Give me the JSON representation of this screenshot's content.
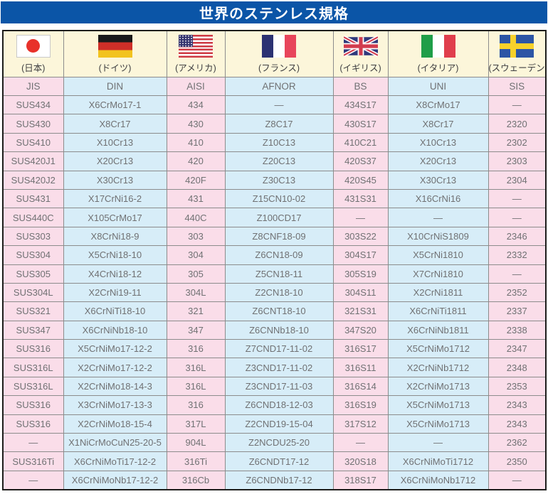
{
  "title": "世界のステンレス規格",
  "columns": [
    {
      "country": "(日本)",
      "flag": "japan-flag-icon",
      "standard": "JIS"
    },
    {
      "country": "(ドイツ)",
      "flag": "germany-flag-icon",
      "standard": "DIN"
    },
    {
      "country": "(アメリカ)",
      "flag": "usa-flag-icon",
      "standard": "AISI"
    },
    {
      "country": "(フランス)",
      "flag": "france-flag-icon",
      "standard": "AFNOR"
    },
    {
      "country": "(イギリス)",
      "flag": "uk-flag-icon",
      "standard": "BS"
    },
    {
      "country": "(イタリア)",
      "flag": "italy-flag-icon",
      "standard": "UNI"
    },
    {
      "country": "(スウェーデン)",
      "flag": "sweden-flag-icon",
      "standard": "SIS"
    }
  ],
  "rows": [
    [
      "SUS434",
      "X6CrMo17-1",
      "434",
      "—",
      "434S17",
      "X8CrMo17",
      "—"
    ],
    [
      "SUS430",
      "X8Cr17",
      "430",
      "Z8C17",
      "430S17",
      "X8Cr17",
      "2320"
    ],
    [
      "SUS410",
      "X10Cr13",
      "410",
      "Z10C13",
      "410C21",
      "X10Cr13",
      "2302"
    ],
    [
      "SUS420J1",
      "X20Cr13",
      "420",
      "Z20C13",
      "420S37",
      "X20Cr13",
      "2303"
    ],
    [
      "SUS420J2",
      "X30Cr13",
      "420F",
      "Z30C13",
      "420S45",
      "X30Cr13",
      "2304"
    ],
    [
      "SUS431",
      "X17CrNi16-2",
      "431",
      "Z15CN10-02",
      "431S31",
      "X16CrNi16",
      "—"
    ],
    [
      "SUS440C",
      "X105CrMo17",
      "440C",
      "Z100CD17",
      "—",
      "—",
      "—"
    ],
    [
      "SUS303",
      "X8CrNi18-9",
      "303",
      "Z8CNF18-09",
      "303S22",
      "X10CrNiS1809",
      "2346"
    ],
    [
      "SUS304",
      "X5CrNi18-10",
      "304",
      "Z6CN18-09",
      "304S17",
      "X5CrNi1810",
      "2332"
    ],
    [
      "SUS305",
      "X4CrNi18-12",
      "305",
      "Z5CN18-11",
      "305S19",
      "X7CrNi1810",
      "—"
    ],
    [
      "SUS304L",
      "X2CrNi19-11",
      "304L",
      "Z2CN18-10",
      "304S11",
      "X2CrNi1811",
      "2352"
    ],
    [
      "SUS321",
      "X6CrNiTi18-10",
      "321",
      "Z6CNT18-10",
      "321S31",
      "X6CrNiTi1811",
      "2337"
    ],
    [
      "SUS347",
      "X6CrNiNb18-10",
      "347",
      "Z6CNNb18-10",
      "347S20",
      "X6CrNiNb1811",
      "2338"
    ],
    [
      "SUS316",
      "X5CrNiMo17-12-2",
      "316",
      "Z7CND17-11-02",
      "316S17",
      "X5CrNiMo1712",
      "2347"
    ],
    [
      "SUS316L",
      "X2CrNiMo17-12-2",
      "316L",
      "Z3CND17-11-02",
      "316S11",
      "X2CrNiNb1712",
      "2348"
    ],
    [
      "SUS316L",
      "X2CrNiMo18-14-3",
      "316L",
      "Z3CND17-11-03",
      "316S14",
      "X2CrNiMo1713",
      "2353"
    ],
    [
      "SUS316",
      "X3CrNiMo17-13-3",
      "316",
      "Z6CND18-12-03",
      "316S19",
      "X5CrNiMo1713",
      "2343"
    ],
    [
      "SUS316",
      "X2CrNiMo18-15-4",
      "317L",
      "Z2CND19-15-04",
      "317S12",
      "X5CrNiMo1713",
      "2343"
    ],
    [
      "—",
      "X1NiCrMoCuN25-20-5",
      "904L",
      "Z2NCDU25-20",
      "—",
      "—",
      "2362"
    ],
    [
      "SUS316Ti",
      "X6CrNiMoTi17-12-2",
      "316Ti",
      "Z6CNDT17-12",
      "320S18",
      "X6CrNiMoTi1712",
      "2350"
    ],
    [
      "—",
      "X6CrNiMoNb17-12-2",
      "316Cb",
      "Z6CNDNb17-12",
      "318S17",
      "X6CrNiMoNb1712",
      "—"
    ]
  ],
  "colors": {
    "title_bg": "#0B55A7",
    "flag_row_bg": "#FCF6DA",
    "pink_column": "#FADDE9",
    "blue_column": "#D7EDF8",
    "grid_line": "#8C8C8C",
    "outer_border": "#1D1D1B",
    "data_text": "#707173"
  }
}
